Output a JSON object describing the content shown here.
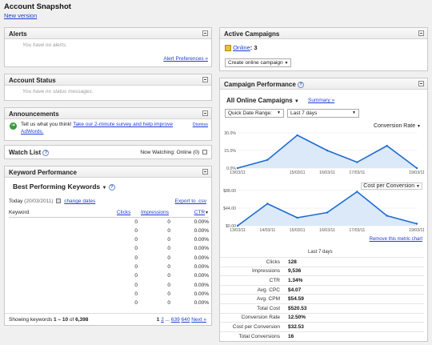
{
  "header": {
    "title": "Account Snapshot",
    "new_version": "New version"
  },
  "alerts": {
    "title": "Alerts",
    "empty": "You have no alerts.",
    "prefs_link": "Alert Preferences »"
  },
  "account_status": {
    "title": "Account Status",
    "empty": "You have no status messages."
  },
  "announcements": {
    "title": "Announcements",
    "text_prefix": "Tell us what you think!",
    "survey_link": "Take our 2-minute survey and help improve AdWords.",
    "dismiss": "Dismiss"
  },
  "watch_list": {
    "title": "Watch List",
    "now_watching": "Now Watching:",
    "online": "Online (0)"
  },
  "keyword_perf": {
    "title": "Keyword Performance",
    "subtitle": "Best Performing Keywords",
    "today_label": "Today",
    "today_date": "(20/03/2011)",
    "change_dates": "change dates",
    "export": "Export to .csv",
    "columns": {
      "keyword": "Keyword",
      "clicks": "Clicks",
      "impressions": "Impressions",
      "ctr": "CTR"
    },
    "rows": [
      [
        "0",
        "0",
        "0.00%"
      ],
      [
        "0",
        "0",
        "0.00%"
      ],
      [
        "0",
        "0",
        "0.00%"
      ],
      [
        "0",
        "0",
        "0.00%"
      ],
      [
        "0",
        "0",
        "0.00%"
      ],
      [
        "0",
        "0",
        "0.00%"
      ],
      [
        "0",
        "0",
        "0.00%"
      ],
      [
        "0",
        "0",
        "0.00%"
      ],
      [
        "0",
        "0",
        "0.00%"
      ],
      [
        "0",
        "0",
        "0.00%"
      ]
    ],
    "showing_prefix": "Showing keywords",
    "showing_range": "1 – 10",
    "showing_of": "of",
    "showing_total": "6,398",
    "pagination": {
      "current": "1",
      "p2": "2",
      "ellipsis": "...",
      "p639": "639",
      "p640": "640",
      "next": "Next »"
    }
  },
  "active_campaigns": {
    "title": "Active Campaigns",
    "online_label": "Online",
    "count": ": 3",
    "create_option": "Create online campaign"
  },
  "campaign_perf": {
    "title": "Campaign Performance",
    "all_campaigns": "All Online Campaigns",
    "summary": "Summary »",
    "quick_range": "Quick Date Range:",
    "last_7": "Last 7 days",
    "chart1_metric": "Conversion Rate",
    "chart2_metric": "Cost per Conversion",
    "remove_metric": "Remove this metric chart",
    "stats_header": "Last 7 days",
    "stats": [
      {
        "label": "Clicks",
        "value": "128"
      },
      {
        "label": "Impressions",
        "value": "9,536"
      },
      {
        "label": "CTR",
        "value": "1.34%"
      },
      {
        "label": "Avg. CPC",
        "value": "$4.07"
      },
      {
        "label": "Avg. CPM",
        "value": "$54.59"
      },
      {
        "label": "Total Cost",
        "value": "$520.53"
      },
      {
        "label": "Conversion Rate",
        "value": "12.50%"
      },
      {
        "label": "Cost per Conversion",
        "value": "$32.53"
      },
      {
        "label": "Total Conversions",
        "value": "16"
      }
    ]
  },
  "chart_data": [
    {
      "type": "area",
      "title": "Conversion Rate",
      "x": [
        "13/03/11",
        "14/03/11",
        "15/03/11",
        "16/03/11",
        "17/03/11",
        "18/03/11",
        "19/03/11"
      ],
      "y_ticks": [
        "30.0%",
        "15.0%",
        "0.0%"
      ],
      "x_ticks": [
        "13/03/11",
        "15/03/11",
        "16/03/11",
        "17/03/11",
        "19/03/11"
      ],
      "values": [
        0,
        7,
        28,
        15,
        5,
        19,
        0
      ],
      "ylim": [
        0,
        30
      ],
      "color": "#1c6cd4"
    },
    {
      "type": "area",
      "title": "Cost per Conversion",
      "x": [
        "13/03/11",
        "14/03/11",
        "15/03/11",
        "16/03/11",
        "17/03/11",
        "18/03/11",
        "19/03/11"
      ],
      "y_ticks": [
        "$88.00",
        "$44.00",
        "$0.00"
      ],
      "x_ticks": [
        "13/03/11",
        "14/03/11",
        "15/03/11",
        "16/03/11",
        "17/03/11",
        "19/03/11"
      ],
      "values": [
        0,
        55,
        20,
        33,
        85,
        25,
        5
      ],
      "ylim": [
        0,
        88
      ],
      "color": "#1c6cd4"
    }
  ]
}
